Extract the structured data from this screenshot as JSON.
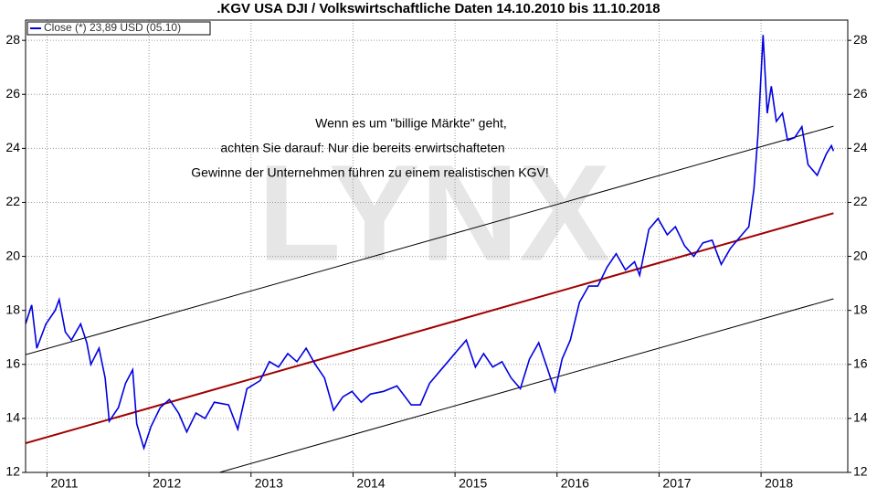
{
  "chart_data": {
    "type": "line",
    "title": ".KGV USA DJI / Volkswirtschaftliche Daten 14.10.2010 bis 11.10.2018",
    "annotation": [
      "Wenn es um \"billige Märkte\" geht,",
      "achten Sie darauf: Nur die bereits erwirtschafteten",
      "Gewinne der Unternehmen führen zu einem realistischen KGV!"
    ],
    "watermark": "LYNX",
    "legend": "upper left",
    "grid": true,
    "xlim": [
      2010.79,
      2018.85
    ],
    "xticks": [
      2011,
      2012,
      2013,
      2014,
      2015,
      2016,
      2017,
      2018
    ],
    "ylim": [
      12,
      28.75
    ],
    "yticks": [
      12,
      14,
      16,
      18,
      20,
      22,
      24,
      26,
      28
    ],
    "x": [
      2010.79,
      2010.85,
      2010.9,
      2010.99,
      2011.08,
      2011.12,
      2011.18,
      2011.24,
      2011.33,
      2011.39,
      2011.43,
      2011.51,
      2011.57,
      2011.61,
      2011.7,
      2011.77,
      2011.84,
      2011.88,
      2011.95,
      2012.02,
      2012.11,
      2012.2,
      2012.29,
      2012.37,
      2012.46,
      2012.55,
      2012.64,
      2012.78,
      2012.87,
      2012.96,
      2013.09,
      2013.18,
      2013.27,
      2013.36,
      2013.45,
      2013.54,
      2013.63,
      2013.72,
      2013.81,
      2013.9,
      2013.99,
      2014.08,
      2014.17,
      2014.3,
      2014.43,
      2014.57,
      2014.66,
      2014.75,
      2014.84,
      2014.93,
      2015.02,
      2015.11,
      2015.2,
      2015.28,
      2015.37,
      2015.46,
      2015.55,
      2015.64,
      2015.73,
      2015.82,
      2015.91,
      2015.98,
      2016.05,
      2016.13,
      2016.22,
      2016.31,
      2016.4,
      2016.49,
      2016.58,
      2016.67,
      2016.76,
      2016.81,
      2016.9,
      2016.99,
      2017.08,
      2017.16,
      2017.25,
      2017.34,
      2017.43,
      2017.52,
      2017.61,
      2017.7,
      2017.79,
      2017.88,
      2017.93,
      2017.97,
      2018.02,
      2018.06,
      2018.1,
      2018.15,
      2018.21,
      2018.26,
      2018.33,
      2018.4,
      2018.46,
      2018.55,
      2018.64,
      2018.69,
      2018.71
    ],
    "series": [
      {
        "name": "Close (*) 23,89 USD (05.10)",
        "color": "#0000e0",
        "values": [
          17.5,
          18.2,
          16.6,
          17.5,
          18.0,
          18.4,
          17.2,
          16.9,
          17.5,
          16.8,
          16.0,
          16.6,
          15.5,
          13.9,
          14.4,
          15.3,
          15.8,
          13.8,
          12.9,
          13.7,
          14.4,
          14.7,
          14.2,
          13.5,
          14.2,
          14.0,
          14.6,
          14.5,
          13.6,
          15.1,
          15.4,
          16.1,
          15.9,
          16.4,
          16.1,
          16.6,
          16.0,
          15.5,
          14.3,
          14.8,
          15.0,
          14.6,
          14.9,
          15.0,
          15.2,
          14.5,
          14.5,
          15.3,
          15.7,
          16.1,
          16.5,
          16.9,
          15.9,
          16.4,
          15.9,
          16.1,
          15.5,
          15.1,
          16.2,
          16.8,
          15.8,
          15.0,
          16.2,
          16.9,
          18.3,
          18.9,
          18.9,
          19.6,
          20.1,
          19.5,
          19.8,
          19.3,
          21.0,
          21.4,
          20.8,
          21.1,
          20.4,
          20.0,
          20.5,
          20.6,
          19.7,
          20.3,
          20.7,
          21.1,
          22.5,
          24.5,
          28.2,
          25.3,
          26.3,
          25.0,
          25.3,
          24.3,
          24.4,
          24.8,
          23.4,
          23.0,
          23.8,
          24.1,
          23.9
        ]
      }
    ],
    "trend_lines": [
      {
        "color": "#000000",
        "x": [
          2010.79,
          2018.71
        ],
        "values": [
          16.36,
          24.82
        ]
      },
      {
        "color": "#a00000",
        "x": [
          2010.79,
          2018.71
        ],
        "values": [
          13.08,
          21.6
        ]
      },
      {
        "color": "#000000",
        "x": [
          2012.69,
          2018.71
        ],
        "values": [
          12.0,
          18.43
        ]
      }
    ]
  }
}
